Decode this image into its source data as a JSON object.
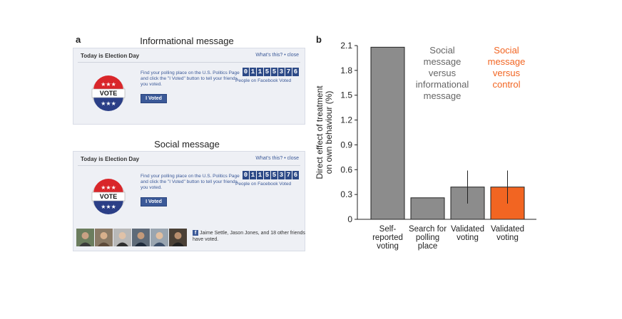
{
  "panel_a": {
    "letter": "a",
    "informational": {
      "title": "Informational message",
      "header": "Today is Election Day",
      "links": "What's this? • close",
      "body": "Find your polling place on the U.S. Politics Page and click the \"I Voted\" button to tell your friends you voted.",
      "button": "I Voted",
      "counter_digits": [
        "0",
        "1",
        "1",
        "5",
        "5",
        "3",
        "7",
        "6"
      ],
      "counter_caption": "People on Facebook Voted",
      "badge_text": "VOTE"
    },
    "social": {
      "title": "Social message",
      "header": "Today is Election Day",
      "links": "What's this? • close",
      "body": "Find your polling place on the U.S. Politics Page and click the \"I Voted\" button to tell your friends you voted.",
      "button": "I Voted",
      "counter_digits": [
        "0",
        "1",
        "1",
        "5",
        "5",
        "3",
        "7",
        "6"
      ],
      "counter_caption": "People on Facebook Voted",
      "badge_text": "VOTE",
      "friends_text": "Jaime Settle, Jason Jones, and 18 other friends have voted."
    }
  },
  "panel_b": {
    "letter": "b"
  },
  "colors": {
    "gray_bar": "#8c8c8c",
    "orange_bar": "#f26522",
    "fb_blue": "#3b5998"
  },
  "chart_data": {
    "type": "bar",
    "ylabel": "Direct effect of treatment on own behaviour (%)",
    "ylim": [
      0,
      2.1
    ],
    "yticks": [
      "0",
      "0.3",
      "0.6",
      "0.9",
      "1.2",
      "1.5",
      "1.8",
      "2.1"
    ],
    "categories": [
      "Self-reported voting",
      "Search for polling place",
      "Validated voting",
      "Validated voting"
    ],
    "category_lines": [
      [
        "Self-",
        "reported",
        "voting"
      ],
      [
        "Search for",
        "polling",
        "place"
      ],
      [
        "Validated",
        "voting"
      ],
      [
        "Validated",
        "voting"
      ]
    ],
    "values": [
      2.08,
      0.26,
      0.39,
      0.39
    ],
    "error_low": [
      null,
      null,
      0.19,
      0.19
    ],
    "error_high": [
      null,
      null,
      0.59,
      0.59
    ],
    "bar_colors": [
      "#8c8c8c",
      "#8c8c8c",
      "#8c8c8c",
      "#f26522"
    ],
    "annotations": [
      {
        "lines": [
          "Social",
          "message",
          "versus",
          "informational",
          "message"
        ],
        "color": "#666666"
      },
      {
        "lines": [
          "Social",
          "message",
          "versus",
          "control"
        ],
        "color": "#f26522"
      }
    ]
  }
}
